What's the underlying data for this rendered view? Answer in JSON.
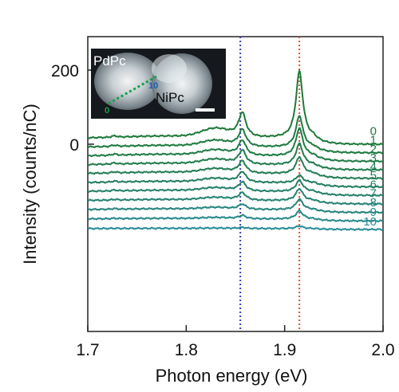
{
  "chart_data": {
    "type": "line",
    "title": "",
    "xlabel": "Photon energy (eV)",
    "ylabel": "Intensity (counts/nC)",
    "xlim": [
      1.7,
      2.0
    ],
    "x_ticks": [
      "1.7",
      "1.8",
      "1.9",
      "2.0"
    ],
    "y_ticks": [
      "200",
      "0"
    ],
    "grid": false,
    "legend": "none",
    "reference_lines": [
      {
        "x": 1.855,
        "color": "#3b3bb8",
        "style": "dotted"
      },
      {
        "x": 1.915,
        "color": "#e0502a",
        "style": "dotted"
      }
    ],
    "series": [
      {
        "label": "0",
        "offset": 0,
        "peak1": 65,
        "peak2": 180,
        "bg": 22,
        "color": "#1e7a3a"
      },
      {
        "label": "1",
        "offset": -23,
        "peak1": 45,
        "peak2": 85,
        "bg": 20,
        "color": "#1f7a40"
      },
      {
        "label": "2",
        "offset": -46,
        "peak1": 40,
        "peak2": 75,
        "bg": 19,
        "color": "#207b46"
      },
      {
        "label": "3",
        "offset": -69,
        "peak1": 37,
        "peak2": 57,
        "bg": 18,
        "color": "#217c4d"
      },
      {
        "label": "4",
        "offset": -92,
        "peak1": 32,
        "peak2": 45,
        "bg": 17,
        "color": "#227d55"
      },
      {
        "label": "5",
        "offset": -115,
        "peak1": 28,
        "peak2": 20,
        "bg": 15,
        "color": "#237e5e"
      },
      {
        "label": "6",
        "offset": -138,
        "peak1": 24,
        "peak2": 30,
        "bg": 14,
        "color": "#248068"
      },
      {
        "label": "7",
        "offset": -161,
        "peak1": 20,
        "peak2": 32,
        "bg": 12,
        "color": "#258272"
      },
      {
        "label": "8",
        "offset": -184,
        "peak1": 14,
        "peak2": 28,
        "bg": 10,
        "color": "#26857e"
      },
      {
        "label": "9",
        "offset": -207,
        "peak1": 9,
        "peak2": 22,
        "bg": 7,
        "color": "#27888a"
      },
      {
        "label": "10",
        "offset": -230,
        "peak1": 3,
        "peak2": 7,
        "bg": 3,
        "color": "#288c98"
      }
    ],
    "inset": {
      "label_left": "PdPc",
      "label_right": "NiPc",
      "marker_start": "0",
      "marker_end": "10"
    }
  }
}
